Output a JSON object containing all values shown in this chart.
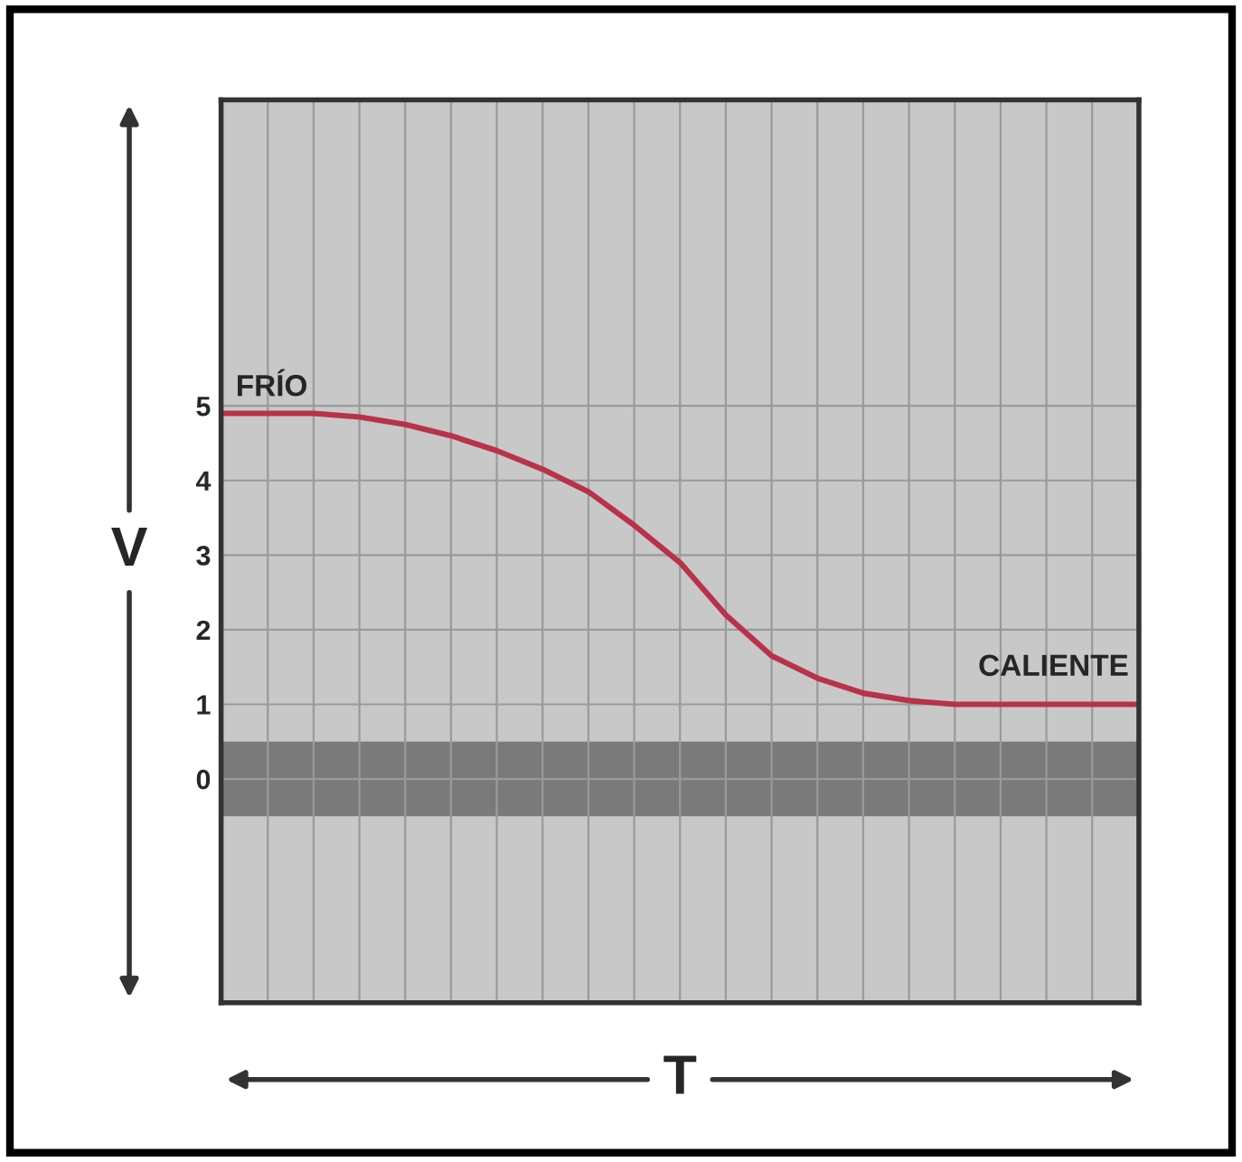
{
  "chart_data": {
    "type": "line",
    "xlabel": "T",
    "ylabel": "V",
    "categories": [
      null,
      null,
      null,
      null,
      null,
      null,
      null,
      null,
      null,
      null,
      null,
      null,
      null,
      null,
      null,
      null,
      null,
      null,
      null,
      null,
      null
    ],
    "series": [
      {
        "color": "#b8324a",
        "values": [
          4.9,
          4.9,
          4.9,
          4.85,
          4.75,
          4.6,
          4.4,
          4.15,
          3.85,
          3.4,
          2.9,
          2.2,
          1.65,
          1.35,
          1.15,
          1.05,
          1.0,
          1.0,
          1.0,
          1.0,
          1.0
        ]
      }
    ],
    "ylim": [
      -3,
      9.1
    ],
    "yticks": [
      0,
      1,
      2,
      3,
      4,
      5
    ],
    "bands": [
      {
        "axis": "y",
        "from": -0.5,
        "to": 0.5,
        "color": "#7a7a7a"
      }
    ],
    "annotations": [
      "FRÍO",
      "CALIENTE"
    ],
    "grid": true,
    "marker": "none",
    "line_style": "solid"
  }
}
